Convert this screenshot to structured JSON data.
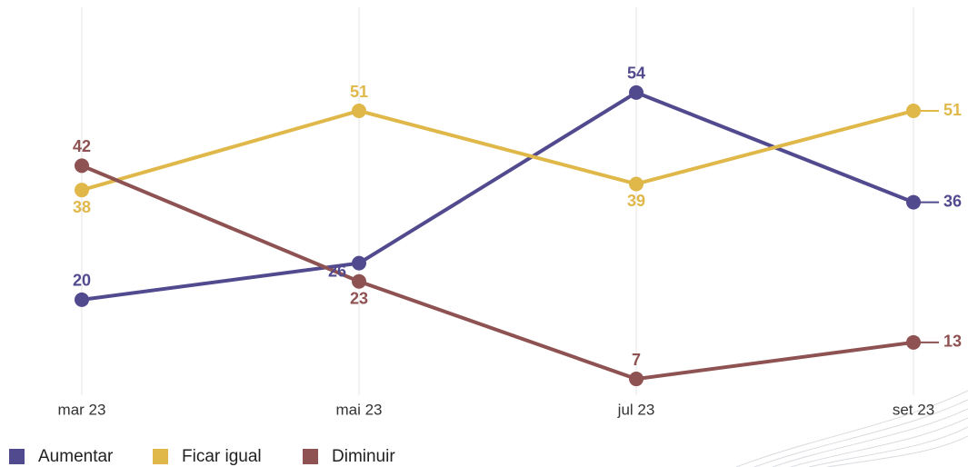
{
  "chart_data": {
    "type": "line",
    "categories": [
      "mar 23",
      "mai 23",
      "jul 23",
      "set 23"
    ],
    "series": [
      {
        "name": "Aumentar",
        "color": "#524a8e",
        "values": [
          20,
          26,
          54,
          36
        ]
      },
      {
        "name": "Ficar igual",
        "color": "#e0b84a",
        "values": [
          38,
          51,
          39,
          51
        ]
      },
      {
        "name": "Diminuir",
        "color": "#8e5252",
        "values": [
          42,
          23,
          7,
          13
        ]
      }
    ],
    "ylim": [
      0,
      68
    ],
    "grid": true
  }
}
